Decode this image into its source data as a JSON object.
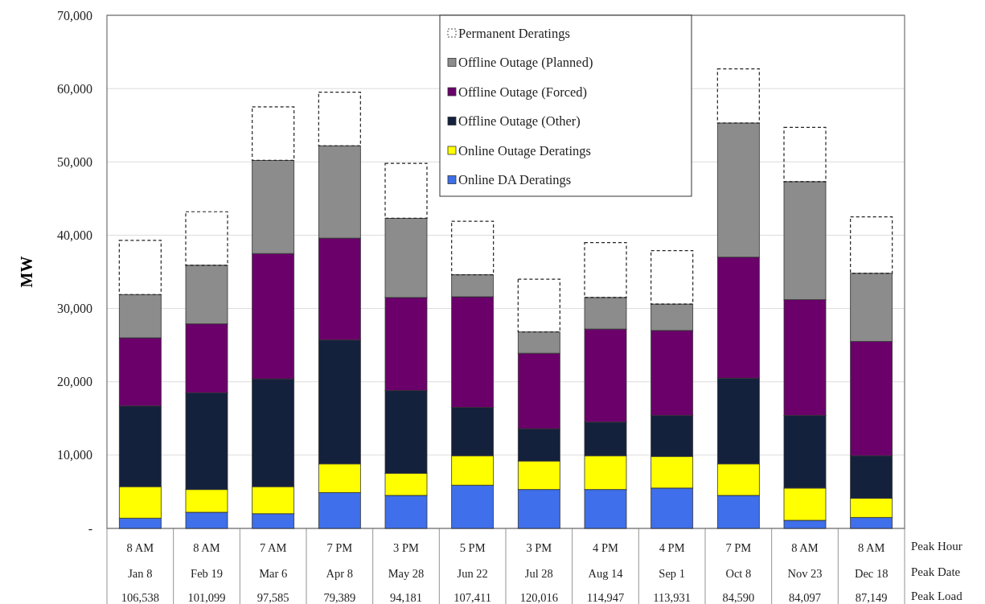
{
  "chart_data": {
    "type": "bar",
    "stacked": true,
    "ylabel": "MW",
    "categories": [
      "8 AM\nJan 8\n106,538",
      "8 AM\nFeb 19\n101,099",
      "7 AM\nMar 6\n97,585",
      "7 PM\nApr 8\n79,389",
      "3 PM\nMay 28\n94,181",
      "5 PM\nJun 22\n107,411",
      "3 PM\nJul 28\n120,016",
      "4 PM\nAug 14\n114,947",
      "4 PM\nSep 1\n113,931",
      "7 PM\nOct 8\n84,590",
      "8 AM\nNov 23\n84,097",
      "8 AM\nDec 18\n87,149"
    ],
    "annotations": [
      "Peak Hour",
      "Peak Date",
      "Peak Load"
    ],
    "series": [
      {
        "name": "Online DA Deratings",
        "color": "#3f6fea",
        "values": [
          1400,
          2200,
          2000,
          4900,
          4500,
          5900,
          5300,
          5300,
          5500,
          4500,
          1100,
          1500
        ]
      },
      {
        "name": "Online Outage Deratings",
        "color": "#ffff00",
        "values": [
          4300,
          3100,
          3700,
          3900,
          3000,
          4000,
          3900,
          4600,
          4300,
          4300,
          4400,
          2600
        ]
      },
      {
        "name": "Offline Outage (Other)",
        "color": "#14213d",
        "values": [
          11000,
          13200,
          14700,
          16900,
          11300,
          6600,
          4400,
          4600,
          5600,
          11700,
          9900,
          5800
        ]
      },
      {
        "name": "Offline Outage (Forced)",
        "color": "#6b006b",
        "values": [
          9300,
          9400,
          17100,
          13900,
          12700,
          15100,
          10300,
          12700,
          11600,
          16500,
          15800,
          15600
        ]
      },
      {
        "name": "Offline Outage (Planned)",
        "color": "#8c8c8c",
        "values": [
          5900,
          8000,
          12700,
          12600,
          10800,
          3000,
          2900,
          4300,
          3600,
          18300,
          16100,
          9300
        ]
      },
      {
        "name": "Permanent Deratings",
        "color": "#222222",
        "line_style": "dashed",
        "values": [
          7400,
          7300,
          7300,
          7300,
          7500,
          7300,
          7200,
          7500,
          7300,
          7400,
          7400,
          7700
        ]
      }
    ],
    "ylim": [
      0,
      70000
    ],
    "yticks": [
      {
        "value": 0,
        "label": "-"
      },
      {
        "value": 10000,
        "label": "10,000"
      },
      {
        "value": 20000,
        "label": "20,000"
      },
      {
        "value": 30000,
        "label": "30,000"
      },
      {
        "value": 40000,
        "label": "40,000"
      },
      {
        "value": 50000,
        "label": "50,000"
      },
      {
        "value": 60000,
        "label": "60,000"
      },
      {
        "value": 70000,
        "label": "70,000"
      }
    ],
    "grid": "y",
    "legend": "top"
  }
}
